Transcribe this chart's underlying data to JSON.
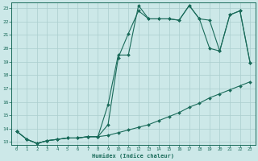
{
  "xlabel": "Humidex (Indice chaleur)",
  "bg_color": "#cce8e8",
  "line_color": "#1a6b5a",
  "grid_color": "#aacece",
  "xlim": [
    -0.5,
    23.5
  ],
  "ylim": [
    12.8,
    23.4
  ],
  "xticks": [
    0,
    1,
    2,
    3,
    4,
    5,
    6,
    7,
    8,
    9,
    10,
    11,
    12,
    13,
    14,
    15,
    16,
    17,
    18,
    19,
    20,
    21,
    22,
    23
  ],
  "yticks": [
    13,
    14,
    15,
    16,
    17,
    18,
    19,
    20,
    21,
    22,
    23
  ],
  "series1_x": [
    0,
    1,
    2,
    3,
    4,
    5,
    6,
    7,
    8,
    9,
    10,
    11,
    12,
    13,
    14,
    15,
    16,
    17,
    18,
    19,
    20,
    21,
    22,
    23
  ],
  "series1_y": [
    13.8,
    13.2,
    12.9,
    13.1,
    13.2,
    13.3,
    13.3,
    13.4,
    13.4,
    15.8,
    19.5,
    19.5,
    23.2,
    22.2,
    22.2,
    22.2,
    22.1,
    23.2,
    22.2,
    22.1,
    19.8,
    22.5,
    22.8,
    18.9
  ],
  "series2_x": [
    0,
    1,
    2,
    3,
    4,
    5,
    6,
    7,
    8,
    9,
    10,
    11,
    12,
    13,
    14,
    15,
    16,
    17,
    18,
    19,
    20,
    21,
    22,
    23
  ],
  "series2_y": [
    13.8,
    13.2,
    12.9,
    13.1,
    13.2,
    13.3,
    13.3,
    13.4,
    13.4,
    14.3,
    19.3,
    21.1,
    22.8,
    22.2,
    22.2,
    22.2,
    22.1,
    23.2,
    22.2,
    20.0,
    19.8,
    22.5,
    22.8,
    18.9
  ],
  "series3_x": [
    0,
    1,
    2,
    3,
    4,
    5,
    6,
    7,
    8,
    9,
    10,
    11,
    12,
    13,
    14,
    15,
    16,
    17,
    18,
    19,
    20,
    21,
    22,
    23
  ],
  "series3_y": [
    13.8,
    13.2,
    12.9,
    13.1,
    13.2,
    13.3,
    13.3,
    13.4,
    13.4,
    13.5,
    13.7,
    13.9,
    14.1,
    14.3,
    14.6,
    14.9,
    15.2,
    15.6,
    15.9,
    16.3,
    16.6,
    16.9,
    17.2,
    17.5
  ]
}
